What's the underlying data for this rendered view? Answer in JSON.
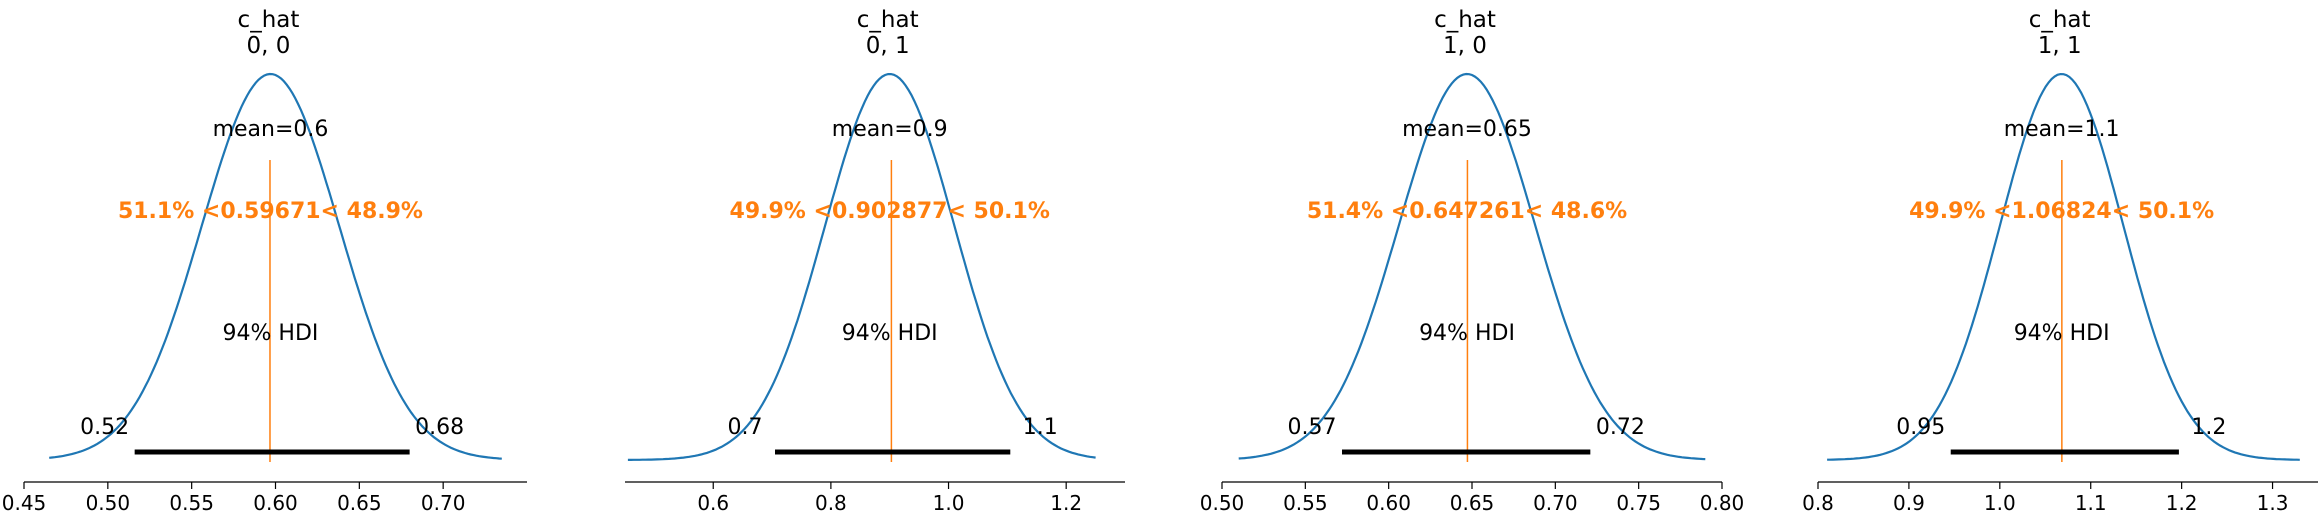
{
  "colors": {
    "curve": "#1f77b4",
    "reference": "#ff7f0e",
    "hdi": "#000000"
  },
  "chart_data": [
    {
      "type": "line",
      "title": "c_hat\n0, 0",
      "xlim": [
        0.45,
        0.75
      ],
      "xticks": [
        0.45,
        0.5,
        0.55,
        0.6,
        0.65,
        0.7
      ],
      "xtick_labels": [
        "0.45",
        "0.50",
        "0.55",
        "0.60",
        "0.65",
        "0.70"
      ],
      "x_range": [
        0.465,
        0.735
      ],
      "mean": 0.597,
      "sd": 0.041,
      "mean_label": "mean=0.6",
      "ref_value": 0.59671,
      "ref_label": "51.1% <0.59671< 48.9%",
      "hdi": [
        0.516,
        0.68
      ],
      "hdi_label": "94% HDI",
      "hdi_low_label": "0.52",
      "hdi_high_label": "0.68"
    },
    {
      "type": "line",
      "title": "c_hat\n0, 1",
      "xlim": [
        0.45,
        1.3
      ],
      "xticks": [
        0.6,
        0.8,
        1.0,
        1.2
      ],
      "xtick_labels": [
        "0.6",
        "0.8",
        "1.0",
        "1.2"
      ],
      "x_range": [
        0.455,
        1.25
      ],
      "mean": 0.9,
      "sd": 0.11,
      "mean_label": "mean=0.9",
      "ref_value": 0.902877,
      "ref_label": "49.9% <0.902877< 50.1%",
      "hdi": [
        0.705,
        1.105
      ],
      "hdi_label": "94% HDI",
      "hdi_low_label": "0.7",
      "hdi_high_label": "1.1"
    },
    {
      "type": "line",
      "title": "c_hat\n1, 0",
      "xlim": [
        0.5,
        0.8
      ],
      "xticks": [
        0.5,
        0.55,
        0.6,
        0.65,
        0.7,
        0.75,
        0.8
      ],
      "xtick_labels": [
        "0.50",
        "0.55",
        "0.60",
        "0.65",
        "0.70",
        "0.75",
        "0.80"
      ],
      "x_range": [
        0.51,
        0.79
      ],
      "mean": 0.647,
      "sd": 0.041,
      "mean_label": "mean=0.65",
      "ref_value": 0.647261,
      "ref_label": "51.4% <0.647261< 48.6%",
      "hdi": [
        0.572,
        0.721
      ],
      "hdi_label": "94% HDI",
      "hdi_low_label": "0.57",
      "hdi_high_label": "0.72"
    },
    {
      "type": "line",
      "title": "c_hat\n1, 1",
      "xlim": [
        0.8,
        1.35
      ],
      "xticks": [
        0.8,
        0.9,
        1.0,
        1.1,
        1.2,
        1.3
      ],
      "xtick_labels": [
        "0.8",
        "0.9",
        "1.0",
        "1.1",
        "1.2",
        "1.3"
      ],
      "x_range": [
        0.81,
        1.33
      ],
      "mean": 1.068,
      "sd": 0.068,
      "mean_label": "mean=1.1",
      "ref_value": 1.06824,
      "ref_label": "49.9% <1.06824< 50.1%",
      "hdi": [
        0.946,
        1.197
      ],
      "hdi_label": "94% HDI",
      "hdi_low_label": "0.95",
      "hdi_high_label": "1.2"
    }
  ]
}
